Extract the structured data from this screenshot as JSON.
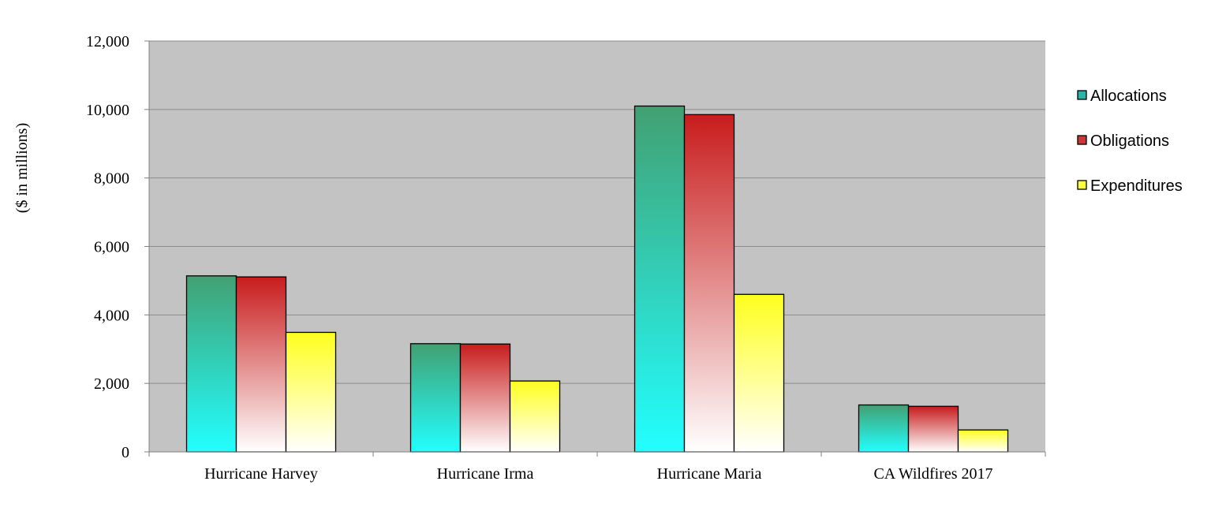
{
  "chart_data": {
    "type": "bar",
    "title": "",
    "xlabel": "",
    "ylabel": "($ in millions)",
    "ylim": [
      0,
      12000
    ],
    "yticks": [
      0,
      2000,
      4000,
      6000,
      8000,
      10000,
      12000
    ],
    "ytick_labels": [
      "0",
      "2,000",
      "4,000",
      "6,000",
      "8,000",
      "10,000",
      "12,000"
    ],
    "grid": true,
    "legend_position": "right",
    "plot_background": "#c3c3c3",
    "categories": [
      "Hurricane Harvey",
      "Hurricane Irma",
      "Hurricane Maria",
      "CA Wildfires 2017"
    ],
    "series": [
      {
        "name": "Allocations",
        "values": [
          5140,
          3160,
          10100,
          1370
        ],
        "colors": {
          "top": "#42a072",
          "bottom": "#22ffff",
          "legend": "#2ab3a8"
        }
      },
      {
        "name": "Obligations",
        "values": [
          5110,
          3150,
          9850,
          1330
        ],
        "colors": {
          "top": "#c81c1c",
          "bottom": "#ffffff",
          "legend": "#c83838"
        }
      },
      {
        "name": "Expenditures",
        "values": [
          3490,
          2070,
          4600,
          640
        ],
        "colors": {
          "top": "#ffff1e",
          "bottom": "#ffffff",
          "legend": "#ffff40"
        }
      }
    ]
  }
}
